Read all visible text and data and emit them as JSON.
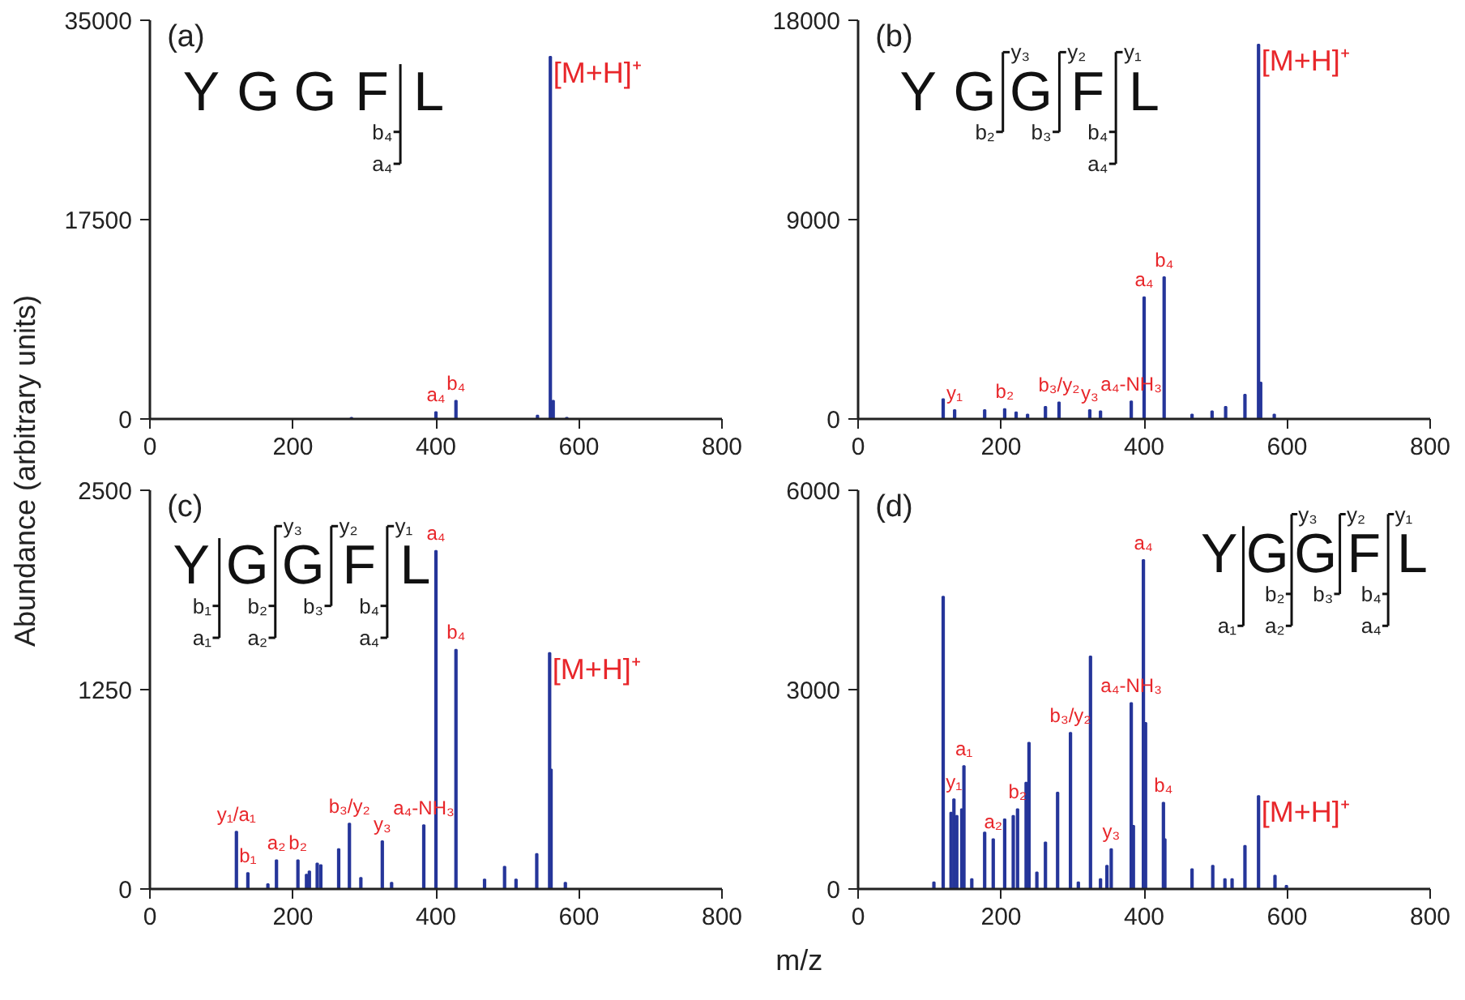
{
  "chart_data": [
    {
      "type": "bar",
      "title": "(a)",
      "ylabel": "Abundance (arbitrary units)",
      "xlim": [
        0,
        800
      ],
      "ylim": [
        0,
        35000
      ],
      "xticks": [
        0,
        200,
        400,
        600,
        800
      ],
      "yticks": [
        0,
        17500,
        35000
      ],
      "grid": false,
      "series": [
        {
          "color": "#26369a",
          "x": [
            282,
            400,
            428,
            542,
            560,
            564,
            583
          ],
          "values": [
            100,
            600,
            1600,
            300,
            31800,
            1600,
            100
          ]
        }
      ],
      "annotations": [
        "Y",
        "G",
        "G",
        "F",
        "L",
        "b₄",
        "a₄",
        {
          "text": "a₄",
          "x": 400,
          "y": 600
        },
        {
          "text": "b₄",
          "x": 428,
          "y": 1600
        },
        {
          "text": "[M+H]⁺",
          "x": 560,
          "y": 31800
        }
      ]
    },
    {
      "type": "bar",
      "title": "(b)",
      "xlim": [
        0,
        800
      ],
      "ylim": [
        0,
        18000
      ],
      "xticks": [
        0,
        200,
        400,
        600,
        800
      ],
      "yticks": [
        0,
        9000,
        18000
      ],
      "grid": false,
      "series": [
        {
          "color": "#26369a",
          "x": [
            119,
            135,
            177,
            205,
            221,
            237,
            262,
            281,
            324,
            339,
            382,
            400,
            428,
            467,
            495,
            514,
            541,
            560,
            563,
            582
          ],
          "values": [
            900,
            400,
            400,
            450,
            300,
            200,
            550,
            750,
            400,
            350,
            800,
            5500,
            6400,
            200,
            350,
            550,
            1100,
            16900,
            1650,
            200
          ]
        }
      ],
      "annotations": [
        "Y",
        "G",
        "G",
        "F",
        "L",
        "y₃",
        "y₂",
        "y₁",
        "b₂",
        "b₃",
        "b₄",
        "a₄",
        {
          "text": "y₁",
          "x": 135,
          "y": 400
        },
        {
          "text": "b₂",
          "x": 205,
          "y": 450
        },
        {
          "text": "b₃/y₂",
          "x": 281,
          "y": 750
        },
        {
          "text": "y₃",
          "x": 324,
          "y": 400
        },
        {
          "text": "a₄-NH₃",
          "x": 382,
          "y": 800
        },
        {
          "text": "a₄",
          "x": 400,
          "y": 5500
        },
        {
          "text": "b₄",
          "x": 428,
          "y": 6400
        },
        {
          "text": "[M+H]⁺",
          "x": 560,
          "y": 16900
        }
      ]
    },
    {
      "type": "bar",
      "title": "(c)",
      "xlabel": "m/z",
      "xlim": [
        0,
        800
      ],
      "ylim": [
        0,
        2500
      ],
      "xticks": [
        0,
        200,
        400,
        600,
        800
      ],
      "yticks": [
        0,
        1250,
        2500
      ],
      "grid": false,
      "series": [
        {
          "color": "#26369a",
          "x": [
            121,
            137,
            165,
            177,
            207,
            219,
            223,
            234,
            239,
            264,
            279,
            295,
            325,
            338,
            383,
            400,
            428,
            468,
            496,
            512,
            541,
            559,
            561,
            581
          ],
          "values": [
            360,
            100,
            30,
            180,
            180,
            90,
            110,
            160,
            150,
            250,
            410,
            70,
            300,
            40,
            400,
            2120,
            1500,
            60,
            140,
            60,
            220,
            1480,
            750,
            40
          ]
        }
      ],
      "annotations": [
        "Y",
        "G",
        "G",
        "F",
        "L",
        "y₃",
        "y₂",
        "y₁",
        "b₁",
        "a₁",
        "b₂",
        "a₂",
        "b₃",
        "b₄",
        "a₄",
        {
          "text": "y₁/a₁",
          "x": 121,
          "y": 360
        },
        {
          "text": "b₁",
          "x": 137,
          "y": 100
        },
        {
          "text": "a₂",
          "x": 177,
          "y": 180
        },
        {
          "text": "b₂",
          "x": 207,
          "y": 180
        },
        {
          "text": "b₃/y₂",
          "x": 279,
          "y": 410
        },
        {
          "text": "y₃",
          "x": 325,
          "y": 300
        },
        {
          "text": "a₄-NH₃",
          "x": 383,
          "y": 400
        },
        {
          "text": "a₄",
          "x": 400,
          "y": 2120
        },
        {
          "text": "b₄",
          "x": 428,
          "y": 1500
        },
        {
          "text": "[M+H]⁺",
          "x": 559,
          "y": 1480
        }
      ]
    },
    {
      "type": "bar",
      "title": "(d)",
      "xlim": [
        0,
        800
      ],
      "ylim": [
        0,
        6000
      ],
      "xticks": [
        0,
        200,
        400,
        600,
        800
      ],
      "yticks": [
        0,
        3000,
        6000
      ],
      "grid": false,
      "series": [
        {
          "color": "#26369a",
          "x": [
            106,
            119,
            130,
            134,
            138,
            145,
            148,
            159,
            177,
            189,
            205,
            217,
            223,
            235,
            239,
            250,
            262,
            279,
            297,
            308,
            325,
            339,
            348,
            354,
            382,
            385,
            399,
            402,
            427,
            429,
            467,
            496,
            513,
            523,
            541,
            560,
            583,
            599
          ],
          "values": [
            100,
            4400,
            1150,
            1350,
            1100,
            1200,
            1850,
            150,
            850,
            750,
            1050,
            1100,
            1200,
            1600,
            2200,
            250,
            700,
            1450,
            2350,
            100,
            3500,
            150,
            350,
            600,
            2800,
            950,
            4950,
            2500,
            1300,
            750,
            300,
            350,
            150,
            150,
            650,
            1400,
            200,
            50
          ]
        }
      ],
      "annotations": [
        "Y",
        "G",
        "G",
        "F",
        "L",
        "y₃",
        "y₂",
        "y₁",
        "a₁",
        "b₂",
        "a₂",
        "b₃",
        "b₄",
        "a₄",
        {
          "text": "y₁",
          "x": 134,
          "y": 1350
        },
        {
          "text": "a₁",
          "x": 148,
          "y": 1850
        },
        {
          "text": "a₂",
          "x": 189,
          "y": 750
        },
        {
          "text": "b₂",
          "x": 223,
          "y": 1200
        },
        {
          "text": "b₃/y₂",
          "x": 297,
          "y": 2350
        },
        {
          "text": "y₃",
          "x": 354,
          "y": 600
        },
        {
          "text": "a₄-NH₃",
          "x": 382,
          "y": 2800
        },
        {
          "text": "a₄",
          "x": 399,
          "y": 4950
        },
        {
          "text": "b₄",
          "x": 427,
          "y": 1300
        },
        {
          "text": "[M+H]⁺",
          "x": 560,
          "y": 1400
        }
      ]
    }
  ]
}
